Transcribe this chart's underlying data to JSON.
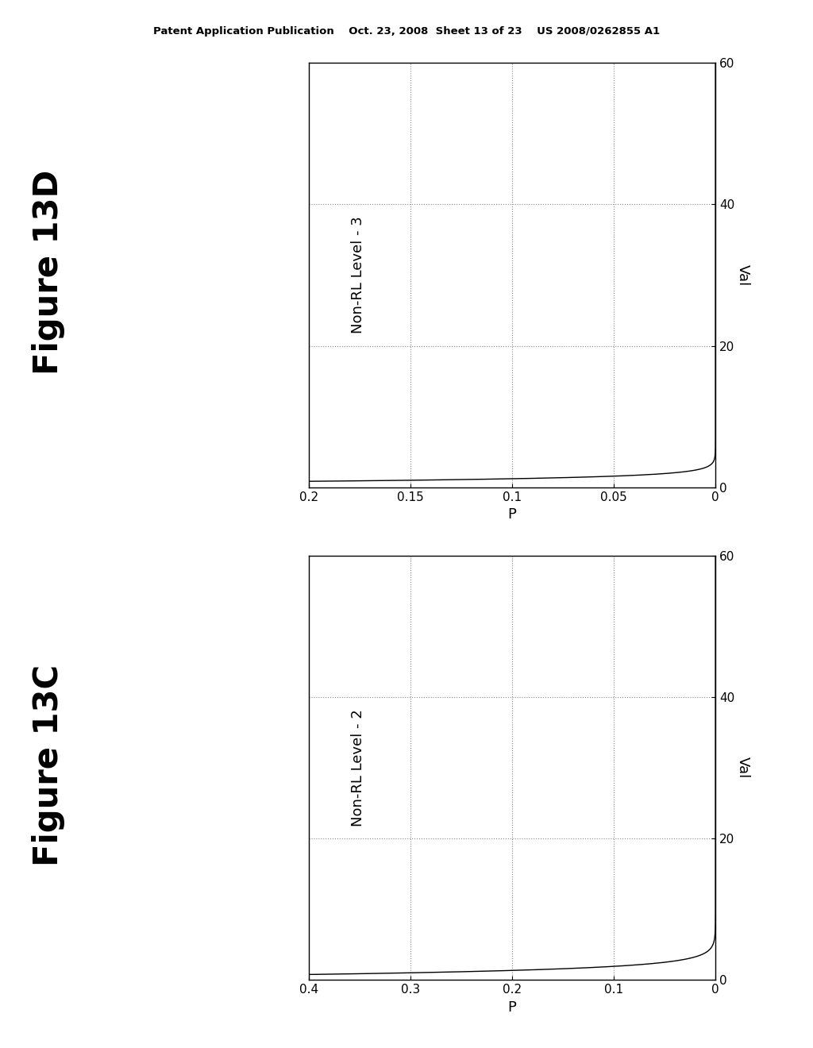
{
  "fig_width": 10.24,
  "fig_height": 13.2,
  "bg_color": "#ffffff",
  "header_text": "Patent Application Publication    Oct. 23, 2008  Sheet 13 of 23    US 2008/0262855 A1",
  "plots": [
    {
      "label": "Figure 13D",
      "ylabel_inner": "Non-RL Level - 3",
      "ylabel_outer": "Val",
      "xlabel": "P",
      "xlim": [
        0.2,
        0.0
      ],
      "ylim": [
        0,
        60
      ],
      "xticks": [
        0.2,
        0.15,
        0.1,
        0.05,
        0.0
      ],
      "yticks": [
        0,
        20,
        40,
        60
      ],
      "grid_yticks": [
        20,
        40
      ],
      "grid_xticks": [
        0.15,
        0.1,
        0.05
      ],
      "p_geo": 0.85,
      "val_max": 60
    },
    {
      "label": "Figure 13C",
      "ylabel_inner": "Non-RL Level - 2",
      "ylabel_outer": "Val",
      "xlabel": "P",
      "xlim": [
        0.4,
        0.0
      ],
      "ylim": [
        0,
        60
      ],
      "xticks": [
        0.4,
        0.3,
        0.2,
        0.1,
        0.0
      ],
      "yticks": [
        0,
        20,
        40,
        60
      ],
      "grid_yticks": [
        20,
        40
      ],
      "grid_xticks": [
        0.3,
        0.2,
        0.1
      ],
      "p_geo": 0.7,
      "val_max": 60
    }
  ],
  "line_color": "#000000",
  "grid_color": "#888888",
  "grid_style": "dotted",
  "spine_color": "#000000",
  "tick_color": "#000000",
  "text_color": "#000000",
  "figure_label_fontsize": 30,
  "axis_label_fontsize": 13,
  "tick_fontsize": 11,
  "header_fontsize": 9.5
}
